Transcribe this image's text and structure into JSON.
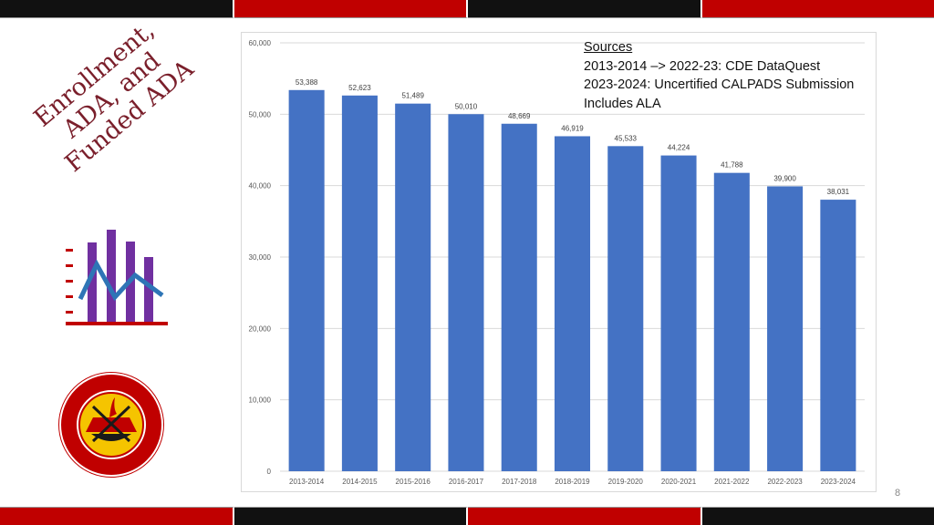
{
  "title_lines": [
    "Enrollment,",
    "ADA, and",
    "Funded ADA"
  ],
  "sources": {
    "heading": "Sources",
    "lines": [
      "2013-2014 –> 2022-23: CDE DataQuest",
      "2023-2024: Uncertified CALPADS Submission",
      "Includes ALA"
    ]
  },
  "page_number": "8",
  "logo": {
    "label": "Santa Ana Unified School District seal"
  },
  "colors": {
    "bar": "#4472c4",
    "title": "#7a1f2b",
    "accent_red": "#c00000",
    "dark": "#111111"
  },
  "chart_data": {
    "type": "bar",
    "categories": [
      "2013-2014",
      "2014-2015",
      "2015-2016",
      "2016-2017",
      "2017-2018",
      "2018-2019",
      "2019-2020",
      "2020-2021",
      "2021-2022",
      "2022-2023",
      "2023-2024"
    ],
    "values": [
      53388,
      52623,
      51489,
      50010,
      48669,
      46919,
      45533,
      44224,
      41788,
      39900,
      38031
    ],
    "value_labels": [
      "53,388",
      "52,623",
      "51,489",
      "50,010",
      "48,669",
      "46,919",
      "45,533",
      "44,224",
      "41,788",
      "39,900",
      "38,031"
    ],
    "yticks": [
      "0",
      "10,000",
      "20,000",
      "30,000",
      "40,000",
      "50,000",
      "60,000"
    ],
    "ylim": [
      0,
      60000
    ],
    "grid": true,
    "legend": "none"
  }
}
